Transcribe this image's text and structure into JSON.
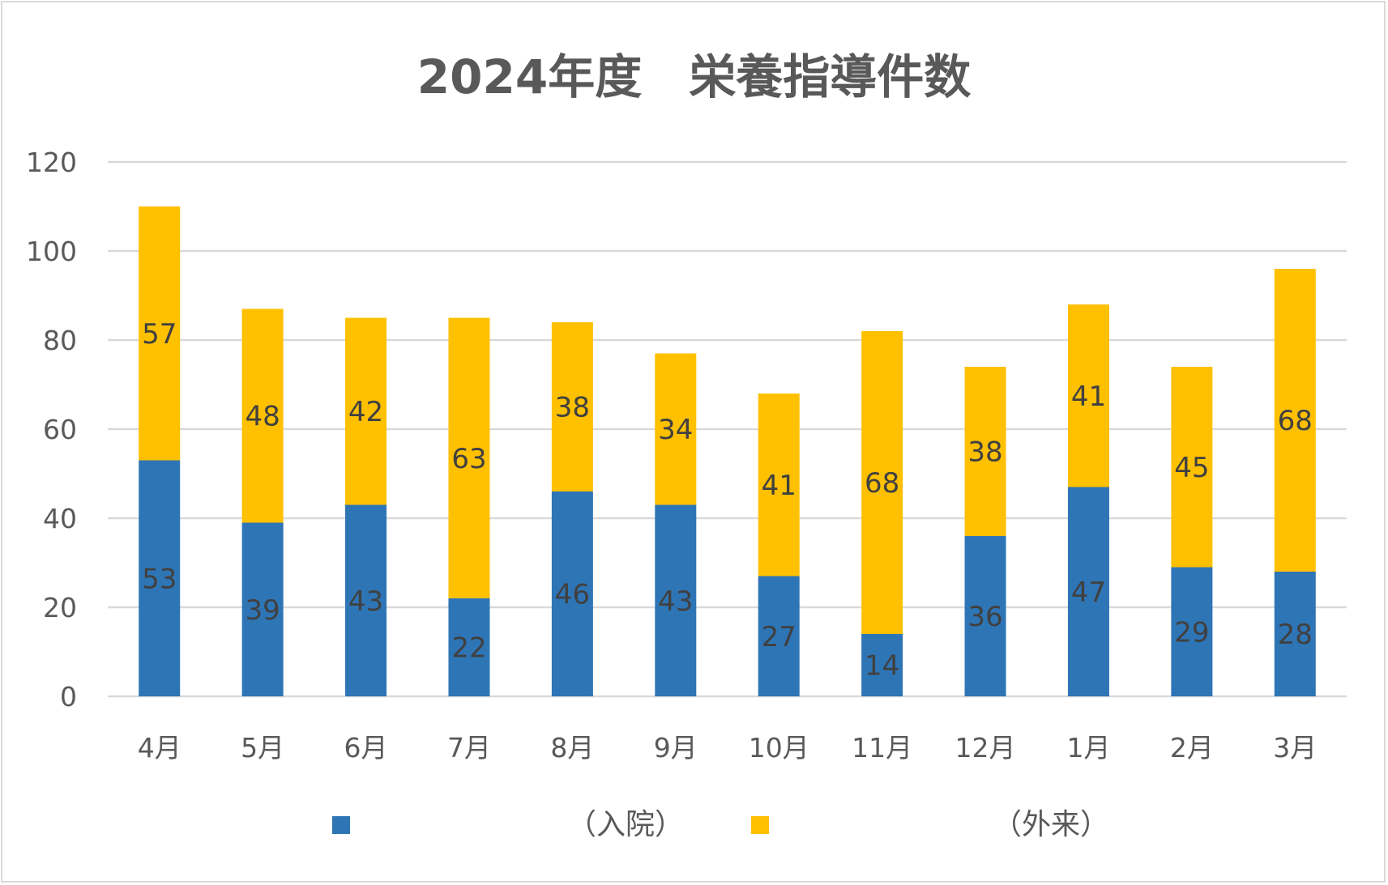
{
  "chart_data": {
    "type": "bar",
    "stacked": true,
    "title": "2024年度　栄養指導件数",
    "categories": [
      "4月",
      "5月",
      "6月",
      "7月",
      "8月",
      "9月",
      "10月",
      "11月",
      "12月",
      "1月",
      "2月",
      "3月"
    ],
    "series": [
      {
        "name": "（入院）",
        "color": "#2e75b6",
        "values": [
          53,
          39,
          43,
          22,
          46,
          43,
          27,
          14,
          36,
          47,
          29,
          28
        ]
      },
      {
        "name": "（外来）",
        "color": "#ffc000",
        "values": [
          57,
          48,
          42,
          63,
          38,
          34,
          41,
          68,
          38,
          41,
          45,
          68
        ]
      }
    ],
    "ylim": [
      0,
      120
    ],
    "yticks": [
      0,
      20,
      40,
      60,
      80,
      100,
      120
    ],
    "xlabel": "",
    "ylabel": "",
    "grid": true,
    "legend": "bottom",
    "colors": {
      "grid": "#d9d9d9",
      "text": "#595959",
      "label": "#404040"
    }
  }
}
